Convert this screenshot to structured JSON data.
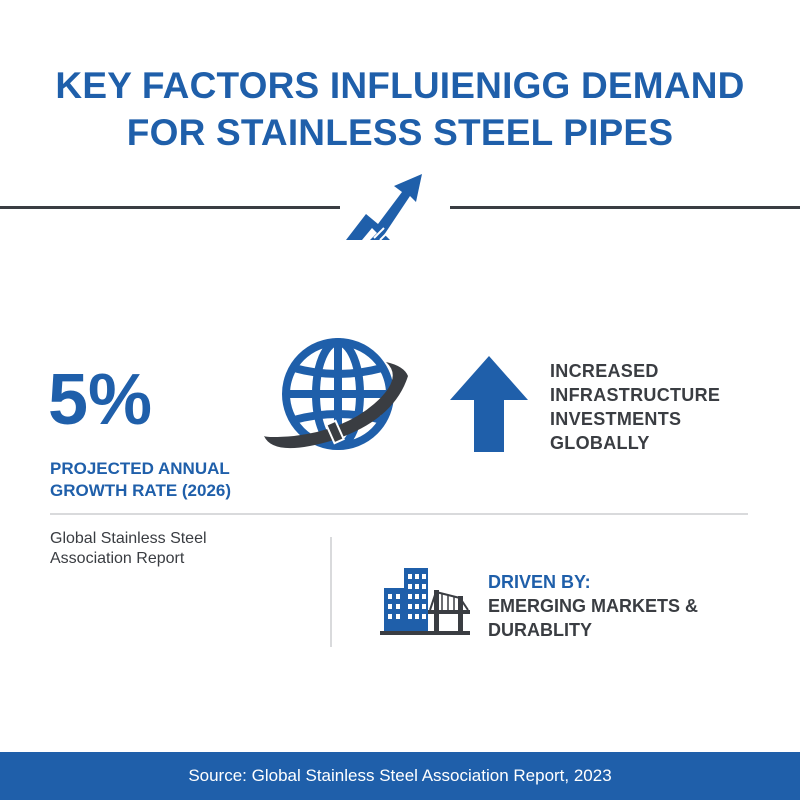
{
  "title": {
    "line1": "KEY FACTORS INFLUIENIGG DEMAND",
    "line2": "FOR STAINLESS STEEL PIPES"
  },
  "stat": {
    "value": "5%",
    "label_line1": "PROJECTED ANNUAL",
    "label_line2": "GROWTH RATE (2026)"
  },
  "infrastructure": {
    "lines": [
      "INCREASED",
      "INFRASTRUCTURE",
      "INVESTMENTS",
      "GLOBALLY"
    ]
  },
  "source_note": {
    "line1": "Global Stainless Steel",
    "line2": "Association Report"
  },
  "drivers": {
    "label": "DRIVEN BY:",
    "line1": "EMERGING MARKETS &",
    "line2": "DURABLITY"
  },
  "footer": {
    "text": "Source: Global Stainless Steel Association Report, 2023"
  },
  "icons": {
    "trend": "trending-up-arrow-icon",
    "globe": "globe-with-pipe-icon",
    "up_arrow": "up-arrow-icon",
    "buildings": "buildings-bridge-icon"
  },
  "colors": {
    "primary_blue": "#1f5faa",
    "dark_gray": "#3a3d42",
    "divider": "#d9dadc",
    "background": "#ffffff"
  }
}
